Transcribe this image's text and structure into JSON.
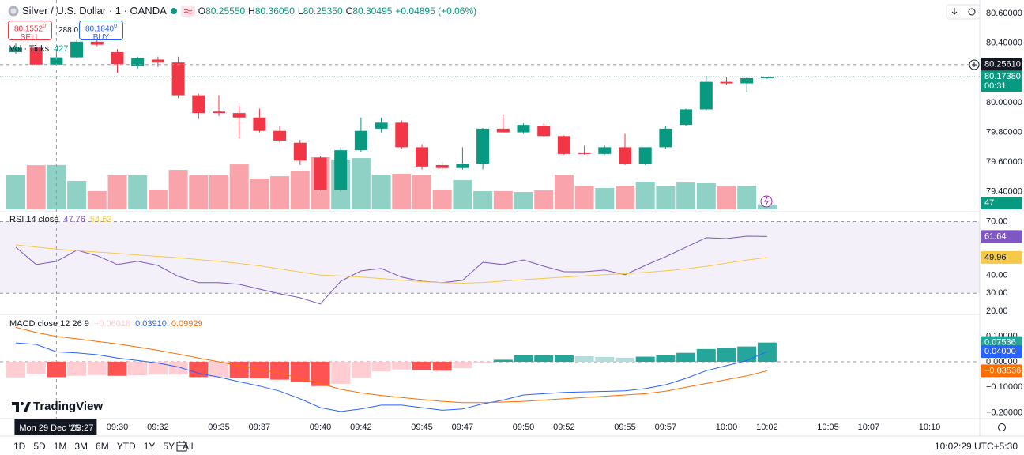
{
  "header": {
    "title": "Silver / U.S. Dollar · 1 · OANDA",
    "ohlc": [
      {
        "key": "O",
        "value": "80.25550"
      },
      {
        "key": "H",
        "value": "80.36050"
      },
      {
        "key": "L",
        "value": "80.25350"
      },
      {
        "key": "C",
        "value": "80.30495"
      }
    ],
    "change": "+0.04895 (+0.06%)",
    "sell": {
      "price": "80.1552",
      "sup": "0",
      "label": "SELL"
    },
    "spread": "288.0",
    "buy": {
      "price": "80.1840",
      "sup": "0",
      "label": "BUY"
    }
  },
  "chart_data": [
    {
      "type": "candlestick",
      "x": [
        "09:25",
        "09:26",
        "09:27",
        "09:28",
        "09:29",
        "09:30",
        "09:31",
        "09:32",
        "09:33",
        "09:34",
        "09:35",
        "09:36",
        "09:37",
        "09:38",
        "09:39",
        "09:40",
        "09:41",
        "09:42",
        "09:43",
        "09:44",
        "09:45",
        "09:46",
        "09:47",
        "09:48",
        "09:49",
        "09:50",
        "09:51",
        "09:52",
        "09:53",
        "09:54",
        "09:55",
        "09:56",
        "09:57",
        "09:58",
        "09:59",
        "10:00",
        "10:01",
        "10:02"
      ],
      "open": [
        80.34,
        80.37,
        80.2555,
        80.305,
        80.41,
        80.34,
        80.245,
        80.29,
        80.27,
        80.05,
        79.94,
        79.93,
        79.9,
        79.81,
        79.73,
        79.63,
        79.415,
        79.68,
        79.825,
        79.865,
        79.7,
        79.58,
        79.56,
        79.59,
        79.825,
        79.8,
        79.845,
        79.775,
        79.66,
        79.655,
        79.7,
        79.585,
        79.7,
        79.85,
        79.955,
        80.14,
        80.13,
        80.165
      ],
      "high": [
        80.4,
        80.4,
        80.3605,
        80.42,
        80.43,
        80.36,
        80.31,
        80.31,
        80.31,
        80.06,
        80.05,
        79.98,
        79.96,
        79.84,
        79.75,
        79.64,
        79.7,
        79.9,
        79.9,
        79.88,
        79.72,
        79.6,
        79.7,
        79.83,
        79.92,
        79.86,
        79.86,
        79.78,
        79.71,
        79.71,
        79.79,
        79.7,
        79.84,
        79.96,
        80.18,
        80.17,
        80.17,
        80.175
      ],
      "low": [
        80.33,
        80.25,
        80.2535,
        80.3,
        80.38,
        80.2,
        80.23,
        80.24,
        80.03,
        79.89,
        79.91,
        79.76,
        79.8,
        79.73,
        79.58,
        79.41,
        79.4,
        79.67,
        79.8,
        79.69,
        79.55,
        79.55,
        79.55,
        79.55,
        79.8,
        79.79,
        79.77,
        79.65,
        79.65,
        79.65,
        79.58,
        79.58,
        79.69,
        79.84,
        79.95,
        80.12,
        80.07,
        80.16
      ],
      "close": [
        80.37,
        80.256,
        80.30495,
        80.41,
        80.39,
        80.26,
        80.3,
        80.27,
        80.05,
        79.93,
        79.93,
        79.9,
        79.81,
        79.745,
        79.61,
        79.415,
        79.68,
        79.81,
        79.865,
        79.7,
        79.57,
        79.56,
        79.59,
        79.825,
        79.8,
        79.85,
        79.775,
        79.655,
        79.655,
        79.7,
        79.585,
        79.7,
        79.825,
        79.955,
        80.14,
        80.13,
        80.165,
        80.1738
      ],
      "up_color": "#089981",
      "down_color": "#f23645",
      "volume_title": "Vol · Ticks",
      "volume": [
        327,
        425,
        427,
        274,
        175,
        327,
        327,
        190,
        380,
        327,
        327,
        433,
        296,
        319,
        372,
        502,
        480,
        494,
        334,
        342,
        334,
        190,
        281,
        175,
        175,
        167,
        182,
        334,
        228,
        205,
        228,
        266,
        228,
        258,
        251,
        220,
        228,
        47
      ],
      "volume_up_color": "rgba(8,153,129,0.45)",
      "volume_down_color": "rgba(242,54,69,0.45)",
      "ylim": [
        79.282,
        80.691
      ],
      "yticks": [
        {
          "value": 80.6,
          "label": "80.60000"
        },
        {
          "value": 80.4,
          "label": "80.40000"
        },
        {
          "value": 80.0,
          "label": "80.00000"
        },
        {
          "value": 79.8,
          "label": "79.80000"
        },
        {
          "value": 79.6,
          "label": "79.60000"
        },
        {
          "value": 79.4,
          "label": "79.40000"
        }
      ],
      "xticks": [
        "09:30",
        "09:32",
        "09:35",
        "09:37",
        "09:40",
        "09:42",
        "09:45",
        "09:47",
        "09:50",
        "09:52",
        "09:55",
        "09:57",
        "10:00",
        "10:02",
        "10:05",
        "10:07",
        "10:10"
      ],
      "crosshair": {
        "date": "Mon 29 Dec '25",
        "time": "09:27",
        "price": {
          "value": 80.2561,
          "label": "80.25610"
        }
      },
      "last_price": {
        "value": 80.1738,
        "label": "80.17380",
        "countdown": "00:31"
      },
      "grid": false
    },
    {
      "type": "line",
      "title": "RSI 14 close",
      "series": [
        {
          "color": "#7e57c2",
          "values": [
            55.7,
            46,
            47.76,
            54,
            51,
            46,
            47.8,
            45.5,
            39.4,
            35.9,
            35.9,
            35,
            32.3,
            29.7,
            27.5,
            24,
            36.7,
            42.5,
            43.8,
            39,
            36.7,
            35.9,
            37.2,
            47.3,
            46,
            48.6,
            45.1,
            42,
            42,
            42.9,
            40.3,
            45.5,
            50.4,
            55.7,
            61,
            60.5,
            61.8,
            61.64
          ]
        },
        {
          "color": "#f7c948",
          "values": [
            57,
            55.8,
            54.63,
            53.8,
            53,
            52.2,
            51.4,
            50.6,
            49.8,
            48.8,
            47.8,
            46.6,
            45.3,
            43.6,
            41.8,
            40.2,
            39.6,
            39,
            38.2,
            37.3,
            36.5,
            35.9,
            35.6,
            36,
            36.8,
            37.6,
            38.3,
            39,
            39.7,
            40.3,
            40.9,
            41.6,
            42.5,
            43.6,
            45,
            46.8,
            48.5,
            49.96
          ]
        }
      ],
      "ylim": [
        18.2,
        74.6
      ],
      "yticks": [
        {
          "value": 70,
          "label": "70.00"
        },
        {
          "value": 40,
          "label": "40.00"
        },
        {
          "value": 30,
          "label": "30.00"
        },
        {
          "value": 20,
          "label": "20.00"
        }
      ],
      "band": [
        30,
        70
      ],
      "band_color": "rgba(126,87,194,0.09)"
    },
    {
      "type": "combo",
      "title": "MACD close 12 26 9",
      "series": [
        {
          "type": "bar",
          "colors": [
            "#26a69a",
            "#b2dfdb",
            "#ffcdd2",
            "#ff5252"
          ],
          "values": [
            -0.061,
            -0.047,
            -0.06018,
            -0.055,
            -0.052,
            -0.055,
            -0.053,
            -0.05,
            -0.05,
            -0.06,
            -0.06,
            -0.063,
            -0.065,
            -0.07,
            -0.08,
            -0.095,
            -0.087,
            -0.063,
            -0.038,
            -0.03,
            -0.032,
            -0.035,
            -0.025,
            -0.005,
            0.008,
            0.025,
            0.025,
            0.025,
            0.022,
            0.019,
            0.016,
            0.02,
            0.025,
            0.035,
            0.05,
            0.055,
            0.06,
            0.07536
          ],
          "value_labels": [
            null,
            null,
            "−0.06018",
            null,
            null,
            null,
            null,
            null,
            null,
            null,
            null,
            null,
            null,
            null,
            null,
            null,
            null,
            null,
            null,
            null,
            null,
            null,
            null,
            null,
            null,
            null,
            null,
            null,
            null,
            null,
            null,
            null,
            null,
            null,
            null,
            null,
            null,
            null
          ]
        },
        {
          "type": "line",
          "color": "#2962ff",
          "values": [
            0.074,
            0.068,
            0.0391,
            0.035,
            0.028,
            0.015,
            0.005,
            -0.005,
            -0.02,
            -0.045,
            -0.06,
            -0.078,
            -0.095,
            -0.115,
            -0.145,
            -0.18,
            -0.195,
            -0.185,
            -0.17,
            -0.17,
            -0.18,
            -0.19,
            -0.185,
            -0.165,
            -0.15,
            -0.13,
            -0.125,
            -0.12,
            -0.118,
            -0.116,
            -0.114,
            -0.105,
            -0.09,
            -0.065,
            -0.035,
            -0.015,
            0.005,
            0.04
          ],
          "value_labels": [
            null,
            null,
            "0.03910",
            null,
            null,
            null,
            null,
            null,
            null,
            null,
            null,
            null,
            null,
            null,
            null,
            null,
            null,
            null,
            null,
            null,
            null,
            null,
            null,
            null,
            null,
            null,
            null,
            null,
            null,
            null,
            null,
            null,
            null,
            null,
            null,
            null,
            null,
            "0.04000"
          ]
        },
        {
          "type": "line",
          "color": "#ff6d00",
          "values": [
            0.135,
            0.115,
            0.09929,
            0.09,
            0.08,
            0.07,
            0.058,
            0.045,
            0.03,
            0.015,
            0,
            -0.015,
            -0.03,
            -0.045,
            -0.065,
            -0.085,
            -0.108,
            -0.122,
            -0.132,
            -0.14,
            -0.148,
            -0.155,
            -0.16,
            -0.16,
            -0.158,
            -0.155,
            -0.15,
            -0.145,
            -0.14,
            -0.135,
            -0.13,
            -0.125,
            -0.115,
            -0.1,
            -0.085,
            -0.07,
            -0.055,
            -0.03536
          ],
          "value_labels": [
            null,
            null,
            null,
            null,
            null,
            null,
            null,
            null,
            null,
            null,
            null,
            null,
            null,
            null,
            null,
            null,
            null,
            null,
            null,
            null,
            null,
            null,
            null,
            null,
            null,
            null,
            null,
            null,
            null,
            null,
            null,
            null,
            null,
            null,
            null,
            null,
            null,
            "−0.03536"
          ]
        }
      ],
      "ylim": [
        -0.2229,
        0.1796
      ],
      "yticks": [
        {
          "value": 0.1,
          "label": "0.10000"
        },
        {
          "value": 0,
          "label": "0.00000"
        },
        {
          "value": -0.1,
          "label": "−0.10000"
        },
        {
          "value": -0.2,
          "label": "−0.20000"
        }
      ],
      "zero_line": true
    }
  ],
  "brand": "TradingView",
  "toolbar": {
    "ranges": [
      "1D",
      "5D",
      "1M",
      "3M",
      "6M",
      "YTD",
      "1Y",
      "5Y",
      "All"
    ],
    "clock": "10:02:29 UTC+5:30"
  }
}
